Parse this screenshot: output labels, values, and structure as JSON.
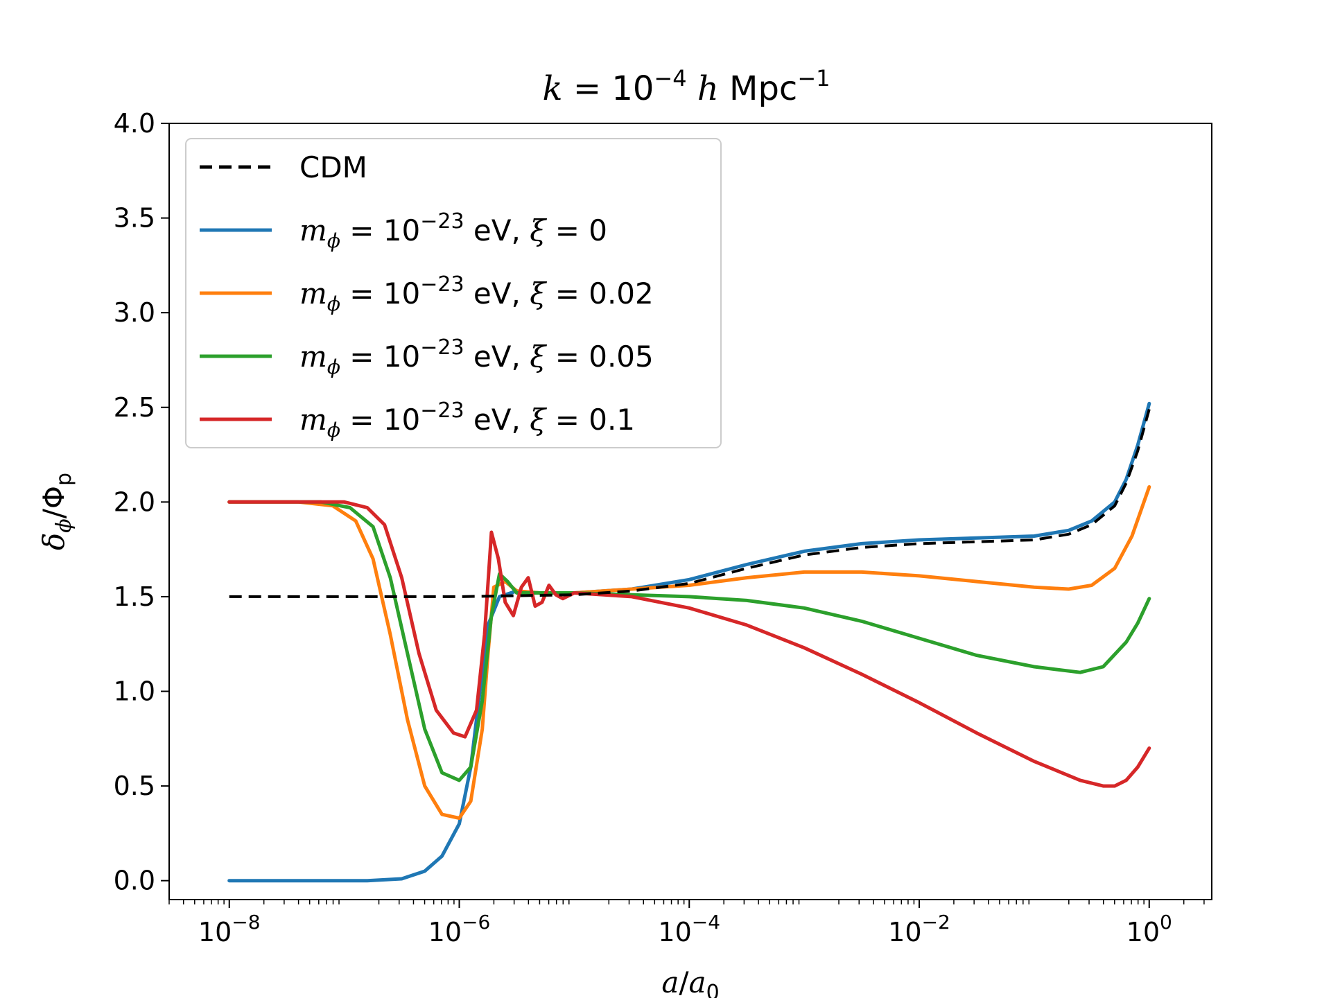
{
  "chart_data": {
    "type": "line",
    "title": {
      "k_symbol": "k",
      "equals": " = ",
      "value_base": "10",
      "value_exp": "−4",
      "h_symbol": "h",
      "unit": "Mpc",
      "unit_exp": "−1"
    },
    "xlabel": {
      "numerator": "a",
      "slash": "/",
      "denominator_base": "a",
      "denominator_sub": "0"
    },
    "ylabel": {
      "delta": "δ",
      "delta_sub": "ϕ",
      "slash": "/",
      "phi": "Φ",
      "phi_sub": "p"
    },
    "xscale": "log",
    "xlim": [
      3e-09,
      3.5
    ],
    "ylim": [
      -0.1,
      4.0
    ],
    "x_ticks": [
      {
        "base": "10",
        "exp": "−8",
        "value": 1e-08
      },
      {
        "base": "10",
        "exp": "−6",
        "value": 1e-06
      },
      {
        "base": "10",
        "exp": "−4",
        "value": 0.0001
      },
      {
        "base": "10",
        "exp": "−2",
        "value": 0.01
      },
      {
        "base": "10",
        "exp": "0",
        "value": 1
      }
    ],
    "y_ticks": [
      {
        "label": "0.0",
        "value": 0.0
      },
      {
        "label": "0.5",
        "value": 0.5
      },
      {
        "label": "1.0",
        "value": 1.0
      },
      {
        "label": "1.5",
        "value": 1.5
      },
      {
        "label": "2.0",
        "value": 2.0
      },
      {
        "label": "2.5",
        "value": 2.5
      },
      {
        "label": "3.0",
        "value": 3.0
      },
      {
        "label": "3.5",
        "value": 3.5
      },
      {
        "label": "4.0",
        "value": 4.0
      }
    ],
    "legend_position": "upper-left",
    "series": [
      {
        "name": "CDM",
        "color": "#000000",
        "style": "dashed",
        "legend": {
          "plain": "CDM"
        },
        "points": [
          [
            -8,
            1.5
          ],
          [
            -6,
            1.5
          ],
          [
            -5,
            1.51
          ],
          [
            -4.5,
            1.53
          ],
          [
            -4,
            1.57
          ],
          [
            -3.5,
            1.65
          ],
          [
            -3,
            1.72
          ],
          [
            -2.5,
            1.76
          ],
          [
            -2,
            1.78
          ],
          [
            -1.5,
            1.79
          ],
          [
            -1,
            1.8
          ],
          [
            -0.7,
            1.83
          ],
          [
            -0.5,
            1.88
          ],
          [
            -0.3,
            1.98
          ],
          [
            -0.2,
            2.1
          ],
          [
            -0.1,
            2.27
          ],
          [
            0,
            2.49
          ]
        ]
      },
      {
        "name": "m_phi=1e-23 eV, xi=0",
        "color": "#1f77b4",
        "style": "solid",
        "legend": {
          "m": "m",
          "m_sub": "ϕ",
          "eq": " = 10",
          "exp": "−23",
          "unit": " eV, ",
          "xi": "ξ",
          "xi_val": " = 0"
        },
        "points": [
          [
            -8,
            0.0
          ],
          [
            -6.8,
            0.0
          ],
          [
            -6.5,
            0.01
          ],
          [
            -6.3,
            0.05
          ],
          [
            -6.15,
            0.13
          ],
          [
            -6.0,
            0.3
          ],
          [
            -5.9,
            0.6
          ],
          [
            -5.82,
            1.0
          ],
          [
            -5.75,
            1.35
          ],
          [
            -5.65,
            1.5
          ],
          [
            -5.5,
            1.53
          ],
          [
            -5.3,
            1.52
          ],
          [
            -5,
            1.52
          ],
          [
            -4.5,
            1.54
          ],
          [
            -4,
            1.59
          ],
          [
            -3.5,
            1.67
          ],
          [
            -3,
            1.74
          ],
          [
            -2.5,
            1.78
          ],
          [
            -2,
            1.8
          ],
          [
            -1.5,
            1.81
          ],
          [
            -1,
            1.82
          ],
          [
            -0.7,
            1.85
          ],
          [
            -0.5,
            1.9
          ],
          [
            -0.3,
            2.0
          ],
          [
            -0.2,
            2.12
          ],
          [
            -0.1,
            2.3
          ],
          [
            0,
            2.52
          ]
        ]
      },
      {
        "name": "m_phi=1e-23 eV, xi=0.02",
        "color": "#ff7f0e",
        "style": "solid",
        "legend": {
          "m": "m",
          "m_sub": "ϕ",
          "eq": " = 10",
          "exp": "−23",
          "unit": " eV, ",
          "xi": "ξ",
          "xi_val": " = 0.02"
        },
        "points": [
          [
            -8,
            2.0
          ],
          [
            -7.4,
            2.0
          ],
          [
            -7.1,
            1.98
          ],
          [
            -6.9,
            1.9
          ],
          [
            -6.75,
            1.7
          ],
          [
            -6.6,
            1.3
          ],
          [
            -6.45,
            0.85
          ],
          [
            -6.3,
            0.5
          ],
          [
            -6.15,
            0.35
          ],
          [
            -6.0,
            0.33
          ],
          [
            -5.9,
            0.42
          ],
          [
            -5.8,
            0.8
          ],
          [
            -5.75,
            1.2
          ],
          [
            -5.7,
            1.55
          ],
          [
            -5.6,
            1.58
          ],
          [
            -5.5,
            1.53
          ],
          [
            -5.3,
            1.52
          ],
          [
            -5,
            1.52
          ],
          [
            -4.5,
            1.54
          ],
          [
            -4,
            1.56
          ],
          [
            -3.5,
            1.6
          ],
          [
            -3,
            1.63
          ],
          [
            -2.5,
            1.63
          ],
          [
            -2,
            1.61
          ],
          [
            -1.5,
            1.58
          ],
          [
            -1,
            1.55
          ],
          [
            -0.7,
            1.54
          ],
          [
            -0.5,
            1.56
          ],
          [
            -0.3,
            1.65
          ],
          [
            -0.15,
            1.82
          ],
          [
            0,
            2.08
          ]
        ]
      },
      {
        "name": "m_phi=1e-23 eV, xi=0.05",
        "color": "#2ca02c",
        "style": "solid",
        "legend": {
          "m": "m",
          "m_sub": "ϕ",
          "eq": " = 10",
          "exp": "−23",
          "unit": " eV, ",
          "xi": "ξ",
          "xi_val": " = 0.05"
        },
        "points": [
          [
            -8,
            2.0
          ],
          [
            -7.2,
            2.0
          ],
          [
            -6.95,
            1.97
          ],
          [
            -6.75,
            1.87
          ],
          [
            -6.6,
            1.6
          ],
          [
            -6.45,
            1.2
          ],
          [
            -6.3,
            0.8
          ],
          [
            -6.15,
            0.57
          ],
          [
            -6.0,
            0.53
          ],
          [
            -5.9,
            0.6
          ],
          [
            -5.8,
            0.95
          ],
          [
            -5.72,
            1.4
          ],
          [
            -5.65,
            1.62
          ],
          [
            -5.58,
            1.58
          ],
          [
            -5.5,
            1.52
          ],
          [
            -5.4,
            1.52
          ],
          [
            -5,
            1.52
          ],
          [
            -4.5,
            1.51
          ],
          [
            -4,
            1.5
          ],
          [
            -3.5,
            1.48
          ],
          [
            -3,
            1.44
          ],
          [
            -2.5,
            1.37
          ],
          [
            -2,
            1.28
          ],
          [
            -1.5,
            1.19
          ],
          [
            -1,
            1.13
          ],
          [
            -0.6,
            1.1
          ],
          [
            -0.4,
            1.13
          ],
          [
            -0.2,
            1.26
          ],
          [
            -0.1,
            1.36
          ],
          [
            0,
            1.49
          ]
        ]
      },
      {
        "name": "m_phi=1e-23 eV, xi=0.1",
        "color": "#d62728",
        "style": "solid",
        "legend": {
          "m": "m",
          "m_sub": "ϕ",
          "eq": " = 10",
          "exp": "−23",
          "unit": " eV, ",
          "xi": "ξ",
          "xi_val": " = 0.1"
        },
        "points": [
          [
            -8,
            2.0
          ],
          [
            -7.0,
            2.0
          ],
          [
            -6.8,
            1.97
          ],
          [
            -6.65,
            1.88
          ],
          [
            -6.5,
            1.6
          ],
          [
            -6.35,
            1.2
          ],
          [
            -6.2,
            0.9
          ],
          [
            -6.05,
            0.78
          ],
          [
            -5.95,
            0.76
          ],
          [
            -5.85,
            0.9
          ],
          [
            -5.78,
            1.3
          ],
          [
            -5.72,
            1.84
          ],
          [
            -5.66,
            1.7
          ],
          [
            -5.6,
            1.47
          ],
          [
            -5.53,
            1.4
          ],
          [
            -5.46,
            1.55
          ],
          [
            -5.4,
            1.6
          ],
          [
            -5.34,
            1.45
          ],
          [
            -5.28,
            1.47
          ],
          [
            -5.22,
            1.56
          ],
          [
            -5.16,
            1.51
          ],
          [
            -5.1,
            1.49
          ],
          [
            -5.0,
            1.52
          ],
          [
            -4.5,
            1.5
          ],
          [
            -4,
            1.44
          ],
          [
            -3.5,
            1.35
          ],
          [
            -3,
            1.23
          ],
          [
            -2.5,
            1.09
          ],
          [
            -2,
            0.94
          ],
          [
            -1.5,
            0.78
          ],
          [
            -1,
            0.63
          ],
          [
            -0.6,
            0.53
          ],
          [
            -0.4,
            0.5
          ],
          [
            -0.3,
            0.5
          ],
          [
            -0.2,
            0.53
          ],
          [
            -0.1,
            0.6
          ],
          [
            0,
            0.7
          ]
        ]
      }
    ]
  }
}
